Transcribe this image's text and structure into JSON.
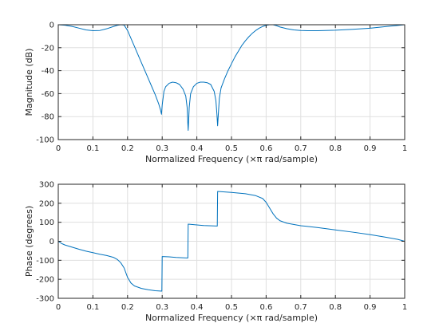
{
  "chart_data": [
    {
      "type": "line",
      "xlabel": "Normalized Frequency  (×π rad/sample)",
      "ylabel": "Magnitude (dB)",
      "xlim": [
        0,
        1
      ],
      "ylim": [
        -100,
        0
      ],
      "xticks": [
        0,
        0.1,
        0.2,
        0.3,
        0.4,
        0.5,
        0.6,
        0.7,
        0.8,
        0.9,
        1
      ],
      "yticks": [
        -100,
        -80,
        -60,
        -40,
        -20,
        0
      ],
      "grid": true,
      "color": "#0072BD",
      "series": [
        {
          "x": [
            0,
            0.02,
            0.04,
            0.06,
            0.08,
            0.1,
            0.12,
            0.14,
            0.16,
            0.17,
            0.18,
            0.19,
            0.2,
            0.21,
            0.22,
            0.23,
            0.24,
            0.25,
            0.26,
            0.27,
            0.28,
            0.29,
            0.295,
            0.298,
            0.3,
            0.305,
            0.31,
            0.32,
            0.33,
            0.34,
            0.35,
            0.36,
            0.368,
            0.372,
            0.374,
            0.375,
            0.376,
            0.378,
            0.382,
            0.39,
            0.4,
            0.41,
            0.42,
            0.43,
            0.44,
            0.45,
            0.455,
            0.458,
            0.46,
            0.462,
            0.465,
            0.47,
            0.48,
            0.49,
            0.5,
            0.51,
            0.52,
            0.53,
            0.54,
            0.55,
            0.56,
            0.57,
            0.58,
            0.59,
            0.6,
            0.61,
            0.62,
            0.63,
            0.64,
            0.66,
            0.68,
            0.7,
            0.72,
            0.75,
            0.8,
            0.85,
            0.9,
            0.95,
            1.0
          ],
          "y": [
            0,
            -0.4,
            -1.5,
            -3,
            -4.5,
            -5.2,
            -5.0,
            -3.5,
            -1.5,
            -0.5,
            0,
            -0.3,
            -5,
            -12,
            -19,
            -26,
            -33,
            -40,
            -47,
            -54,
            -61,
            -69,
            -74,
            -78,
            -70,
            -58,
            -54,
            -51,
            -50,
            -50.5,
            -52,
            -56,
            -62,
            -72,
            -86,
            -92,
            -86,
            -72,
            -60,
            -54,
            -51,
            -50,
            -50,
            -50.5,
            -52,
            -58,
            -66,
            -78,
            -88,
            -78,
            -64,
            -55,
            -47,
            -40,
            -34,
            -28,
            -23,
            -18,
            -14,
            -10.5,
            -7.5,
            -5,
            -3,
            -1.5,
            -0.5,
            0,
            0,
            -0.8,
            -2,
            -3.5,
            -4.5,
            -5,
            -5.2,
            -5.2,
            -4.8,
            -4.0,
            -3.0,
            -1.5,
            0
          ]
        }
      ]
    },
    {
      "type": "line",
      "xlabel": "Normalized Frequency  (×π rad/sample)",
      "ylabel": "Phase (degrees)",
      "xlim": [
        0,
        1
      ],
      "ylim": [
        -300,
        300
      ],
      "xticks": [
        0,
        0.1,
        0.2,
        0.3,
        0.4,
        0.5,
        0.6,
        0.7,
        0.8,
        0.9,
        1
      ],
      "yticks": [
        -300,
        -200,
        -100,
        0,
        100,
        200,
        300
      ],
      "grid": true,
      "color": "#0072BD",
      "series": [
        {
          "x": [
            0,
            0.01,
            0.02,
            0.04,
            0.06,
            0.08,
            0.1,
            0.12,
            0.14,
            0.16,
            0.17,
            0.18,
            0.19,
            0.2,
            0.21,
            0.22,
            0.24,
            0.26,
            0.28,
            0.299,
            0.3,
            0.32,
            0.34,
            0.374,
            0.375,
            0.4,
            0.42,
            0.459,
            0.46,
            0.5,
            0.54,
            0.57,
            0.59,
            0.6,
            0.61,
            0.62,
            0.63,
            0.64,
            0.66,
            0.7,
            0.75,
            0.8,
            0.85,
            0.9,
            0.95,
            0.98,
            1.0
          ],
          "y": [
            0,
            -12,
            -20,
            -31,
            -42,
            -52,
            -60,
            -68,
            -75,
            -85,
            -95,
            -112,
            -140,
            -190,
            -220,
            -235,
            -248,
            -255,
            -260,
            -262,
            -80,
            -82,
            -85,
            -88,
            90,
            86,
            83,
            80,
            262,
            257,
            250,
            240,
            225,
            205,
            175,
            145,
            122,
            108,
            95,
            82,
            72,
            60,
            48,
            35,
            20,
            10,
            0
          ]
        }
      ]
    }
  ]
}
